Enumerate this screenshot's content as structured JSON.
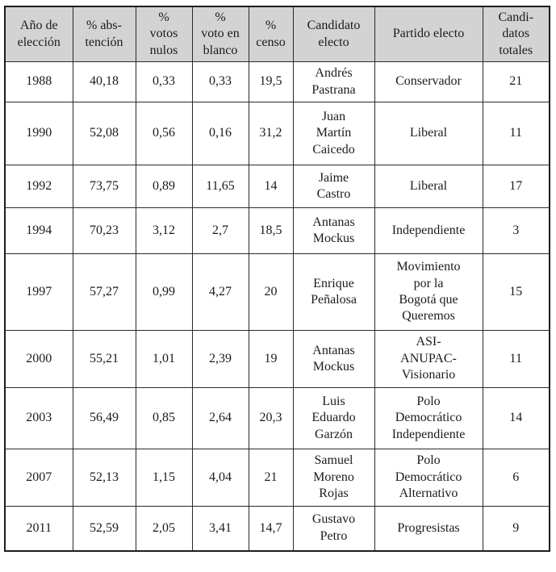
{
  "table": {
    "columns": [
      {
        "label": "Año de\nelección"
      },
      {
        "label": "% abs-\ntención"
      },
      {
        "label": "%\nvotos\nnulos"
      },
      {
        "label": "%\nvoto en\nblanco"
      },
      {
        "label": "%\ncenso"
      },
      {
        "label": "Candidato\nelecto"
      },
      {
        "label": "Partido electo"
      },
      {
        "label": "Candi-\ndatos\ntotales"
      }
    ],
    "rows": [
      {
        "year": "1988",
        "abstention": "40,18",
        "null_votes": "0,33",
        "blank_votes": "0,33",
        "census": "19,5",
        "candidate": "Andrés\nPastrana",
        "party": "Conservador",
        "total_candidates": "21"
      },
      {
        "year": "1990",
        "abstention": "52,08",
        "null_votes": "0,56",
        "blank_votes": "0,16",
        "census": "31,2",
        "candidate": "Juan\nMartín\nCaicedo",
        "party": "Liberal",
        "total_candidates": "11"
      },
      {
        "year": "1992",
        "abstention": "73,75",
        "null_votes": "0,89",
        "blank_votes": "11,65",
        "census": "14",
        "candidate": "Jaime\nCastro",
        "party": "Liberal",
        "total_candidates": "17"
      },
      {
        "year": "1994",
        "abstention": "70,23",
        "null_votes": "3,12",
        "blank_votes": "2,7",
        "census": "18,5",
        "candidate": "Antanas\nMockus",
        "party": "Independiente",
        "total_candidates": "3"
      },
      {
        "year": "1997",
        "abstention": "57,27",
        "null_votes": "0,99",
        "blank_votes": "4,27",
        "census": "20",
        "candidate": "Enrique\nPeñalosa",
        "party": "Movimiento\npor la\nBogotá que\nQueremos",
        "total_candidates": "15"
      },
      {
        "year": "2000",
        "abstention": "55,21",
        "null_votes": "1,01",
        "blank_votes": "2,39",
        "census": "19",
        "candidate": "Antanas\nMockus",
        "party": "ASI-\nANUPAC-\nVisionario",
        "total_candidates": "11"
      },
      {
        "year": "2003",
        "abstention": "56,49",
        "null_votes": "0,85",
        "blank_votes": "2,64",
        "census": "20,3",
        "candidate": "Luis\nEduardo\nGarzón",
        "party": "Polo\nDemocrático\nIndependiente",
        "total_candidates": "14"
      },
      {
        "year": "2007",
        "abstention": "52,13",
        "null_votes": "1,15",
        "blank_votes": "4,04",
        "census": "21",
        "candidate": "Samuel\nMoreno\nRojas",
        "party": "Polo\nDemocrático\nAlternativo",
        "total_candidates": "6"
      },
      {
        "year": "2011",
        "abstention": "52,59",
        "null_votes": "2,05",
        "blank_votes": "3,41",
        "census": "14,7",
        "candidate": "Gustavo\nPetro",
        "party": "Progresistas",
        "total_candidates": "9"
      }
    ],
    "colors": {
      "header_background": "#d3d3d3",
      "border": "#2a2a2a",
      "text": "#1b1b1b",
      "page_background": "#ffffff"
    }
  }
}
